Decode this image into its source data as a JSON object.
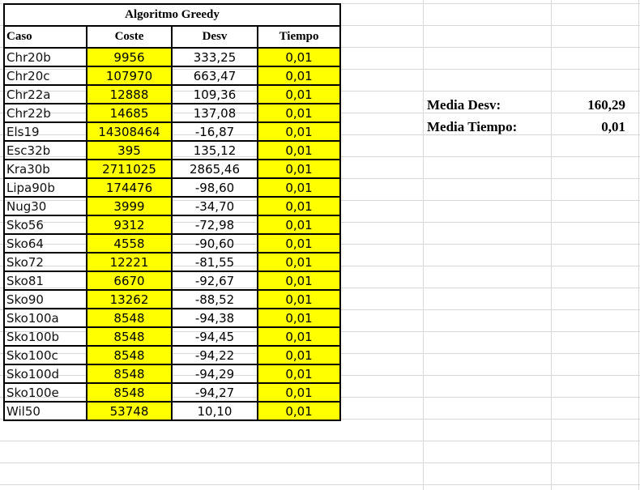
{
  "table": {
    "title": "Algoritmo Greedy",
    "headers": {
      "caso": "Caso",
      "coste": "Coste",
      "desv": "Desv",
      "tiempo": "Tiempo"
    },
    "rows": [
      {
        "caso": "Chr20b",
        "coste": "9956",
        "desv": "333,25",
        "tiempo": "0,01"
      },
      {
        "caso": "Chr20c",
        "coste": "107970",
        "desv": "663,47",
        "tiempo": "0,01"
      },
      {
        "caso": "Chr22a",
        "coste": "12888",
        "desv": "109,36",
        "tiempo": "0,01"
      },
      {
        "caso": "Chr22b",
        "coste": "14685",
        "desv": "137,08",
        "tiempo": "0,01"
      },
      {
        "caso": "Els19",
        "coste": "14308464",
        "desv": "-16,87",
        "tiempo": "0,01"
      },
      {
        "caso": "Esc32b",
        "coste": "395",
        "desv": "135,12",
        "tiempo": "0,01"
      },
      {
        "caso": "Kra30b",
        "coste": "2711025",
        "desv": "2865,46",
        "tiempo": "0,01"
      },
      {
        "caso": "Lipa90b",
        "coste": "174476",
        "desv": "-98,60",
        "tiempo": "0,01"
      },
      {
        "caso": "Nug30",
        "coste": "3999",
        "desv": "-34,70",
        "tiempo": "0,01"
      },
      {
        "caso": "Sko56",
        "coste": "9312",
        "desv": "-72,98",
        "tiempo": "0,01"
      },
      {
        "caso": "Sko64",
        "coste": "4558",
        "desv": "-90,60",
        "tiempo": "0,01"
      },
      {
        "caso": "Sko72",
        "coste": "12221",
        "desv": "-81,55",
        "tiempo": "0,01"
      },
      {
        "caso": "Sko81",
        "coste": "6670",
        "desv": "-92,67",
        "tiempo": "0,01"
      },
      {
        "caso": "Sko90",
        "coste": "13262",
        "desv": "-88,52",
        "tiempo": "0,01"
      },
      {
        "caso": "Sko100a",
        "coste": "8548",
        "desv": "-94,38",
        "tiempo": "0,01"
      },
      {
        "caso": "Sko100b",
        "coste": "8548",
        "desv": "-94,45",
        "tiempo": "0,01"
      },
      {
        "caso": "Sko100c",
        "coste": "8548",
        "desv": "-94,22",
        "tiempo": "0,01"
      },
      {
        "caso": "Sko100d",
        "coste": "8548",
        "desv": "-94,29",
        "tiempo": "0,01"
      },
      {
        "caso": "Sko100e",
        "coste": "8548",
        "desv": "-94,27",
        "tiempo": "0,01"
      },
      {
        "caso": "Wil50",
        "coste": "53748",
        "desv": "10,10",
        "tiempo": "0,01"
      }
    ]
  },
  "summary": {
    "media_desv_label": "Media Desv:",
    "media_desv_value": "160,29",
    "media_tiempo_label": "Media Tiempo:",
    "media_tiempo_value": "0,01"
  },
  "colors": {
    "highlight": "#ffff00",
    "gridline": "#d8d8d8",
    "border": "#000000"
  }
}
